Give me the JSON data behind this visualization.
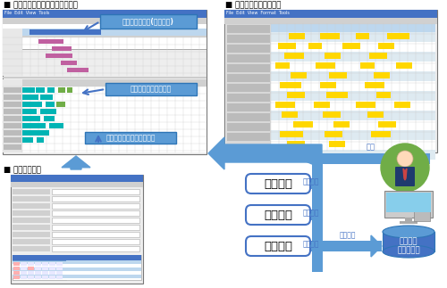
{
  "bg_color": "#ffffff",
  "label_top_left": "■ 工事毎の人員配置計画立案画面",
  "label_top_right": "■ 担当作業員別勤務計画",
  "label_bottom_left": "■ 工事情報設定",
  "callout1": "工事の作業計画(必要人員)",
  "callout2": "担当者の作業割付状況",
  "callout3": "マウス操作による人員割付",
  "decision": "決裁",
  "sakuji": "作業実績",
  "site": "作業現場",
  "shiji": "作業指示",
  "skill": "作業員別\nスキル管理",
  "blue": "#4472C4",
  "light_blue_arrow": "#6699CC",
  "dark_blue": "#2E75B6",
  "cyan": "#00B0C8",
  "teal": "#009999",
  "green": "#70AD47",
  "yellow": "#FFD700",
  "gray_light": "#D9D9D9",
  "gray_mid": "#AAAAAA",
  "screen_bg": "#F2F2F2"
}
